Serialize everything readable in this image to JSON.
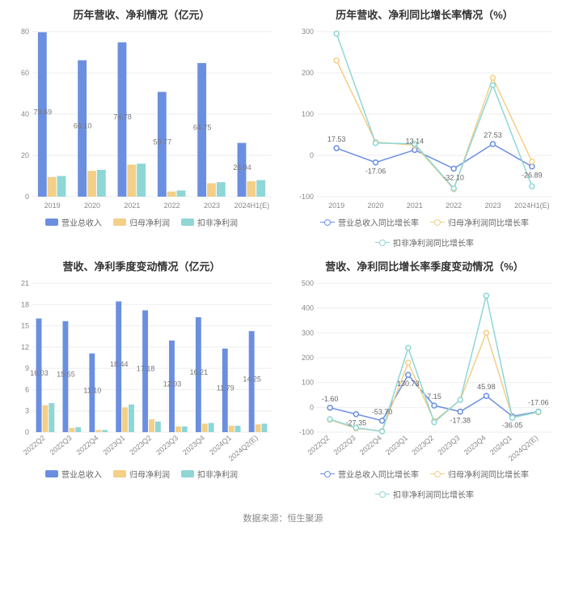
{
  "footer_text": "数据来源：恒生聚源",
  "colors": {
    "bar_primary": "#6b8fe0",
    "bar_secondary": "#f3cf87",
    "bar_tertiary": "#8fd6d6",
    "line_primary": "#6b8fe0",
    "line_secondary": "#f3cf87",
    "line_tertiary": "#8fd6d6",
    "grid": "#eeeeee",
    "axis_text": "#888888",
    "title_text": "#333333",
    "background": "#ffffff"
  },
  "panels": {
    "annual_bar": {
      "title": "历年营收、净利情况（亿元）",
      "type": "bar",
      "categories": [
        "2019",
        "2020",
        "2021",
        "2022",
        "2023",
        "2024H1(E)"
      ],
      "series": [
        {
          "name": "营业总收入",
          "color_key": "bar_primary",
          "values": [
            79.69,
            66.1,
            74.78,
            50.77,
            64.75,
            26.04
          ]
        },
        {
          "name": "归母净利润",
          "color_key": "bar_secondary",
          "values": [
            9.5,
            12.5,
            15.5,
            2.5,
            6.5,
            7.5
          ]
        },
        {
          "name": "扣非净利润",
          "color_key": "bar_tertiary",
          "values": [
            10.0,
            13.0,
            16.0,
            3.0,
            7.0,
            8.0
          ]
        }
      ],
      "ylim": [
        0,
        80
      ],
      "ytick_step": 20,
      "data_labels_series": 0,
      "bar_group_width": 0.72,
      "title_fontsize": 13,
      "axis_fontsize": 9
    },
    "annual_line": {
      "title": "历年营收、净利同比增长率情况（%）",
      "type": "line",
      "categories": [
        "2019",
        "2020",
        "2021",
        "2022",
        "2023",
        "2024H1(E)"
      ],
      "series": [
        {
          "name": "营业总收入同比增长率",
          "color_key": "line_primary",
          "values": [
            17.53,
            -17.06,
            13.14,
            -32.1,
            27.53,
            -26.89
          ]
        },
        {
          "name": "归母净利润同比增长率",
          "color_key": "line_secondary",
          "values": [
            230,
            32,
            25,
            -82,
            188,
            -15
          ]
        },
        {
          "name": "扣非净利润同比增长率",
          "color_key": "line_tertiary",
          "values": [
            295,
            30,
            28,
            -80,
            170,
            -75
          ]
        }
      ],
      "ylim": [
        -100,
        300
      ],
      "ytick_step": 100,
      "data_labels_series": 0,
      "marker_radius": 3,
      "line_width": 1.5,
      "title_fontsize": 13,
      "axis_fontsize": 9
    },
    "quarter_bar": {
      "title": "营收、净利季度变动情况（亿元）",
      "type": "bar",
      "categories": [
        "2022Q2",
        "2022Q3",
        "2022Q4",
        "2023Q1",
        "2023Q2",
        "2023Q3",
        "2023Q4",
        "2024Q1",
        "2024Q2(E)"
      ],
      "series": [
        {
          "name": "营业总收入",
          "color_key": "bar_primary",
          "values": [
            16.03,
            15.65,
            11.1,
            18.44,
            17.18,
            12.93,
            16.21,
            11.79,
            14.25
          ]
        },
        {
          "name": "归母净利润",
          "color_key": "bar_secondary",
          "values": [
            3.8,
            0.6,
            0.3,
            3.5,
            1.8,
            0.8,
            1.2,
            0.9,
            1.1
          ]
        },
        {
          "name": "扣非净利润",
          "color_key": "bar_tertiary",
          "values": [
            4.1,
            0.7,
            0.3,
            3.9,
            1.5,
            0.8,
            1.3,
            0.9,
            1.2
          ]
        }
      ],
      "ylim": [
        0,
        21
      ],
      "ytick_step": 3,
      "data_labels_series": 0,
      "bar_group_width": 0.72,
      "title_fontsize": 13,
      "axis_fontsize": 9,
      "x_rotate": true
    },
    "quarter_line": {
      "title": "营收、净利同比增长率季度变动情况（%）",
      "type": "line",
      "categories": [
        "2022Q2",
        "2022Q3",
        "2022Q4",
        "2023Q1",
        "2023Q2",
        "2023Q3",
        "2023Q4",
        "2024Q1",
        "2024Q2(E)"
      ],
      "series": [
        {
          "name": "营业总收入同比增长率",
          "color_key": "line_primary",
          "values": [
            -1.6,
            -27.35,
            -53.7,
            130.73,
            7.15,
            -17.38,
            45.98,
            -36.05,
            -17.06
          ]
        },
        {
          "name": "归母净利润同比增长率",
          "color_key": "line_secondary",
          "values": [
            -50,
            -85,
            -95,
            180,
            -55,
            30,
            300,
            -40,
            -20
          ]
        },
        {
          "name": "扣非净利润同比增长率",
          "color_key": "line_tertiary",
          "values": [
            -48,
            -82,
            -97,
            240,
            -60,
            30,
            450,
            -42,
            -18
          ]
        }
      ],
      "ylim": [
        -100,
        500
      ],
      "ytick_step": 100,
      "data_labels_series": 0,
      "marker_radius": 3,
      "line_width": 1.5,
      "title_fontsize": 13,
      "axis_fontsize": 9,
      "x_rotate": true
    }
  }
}
